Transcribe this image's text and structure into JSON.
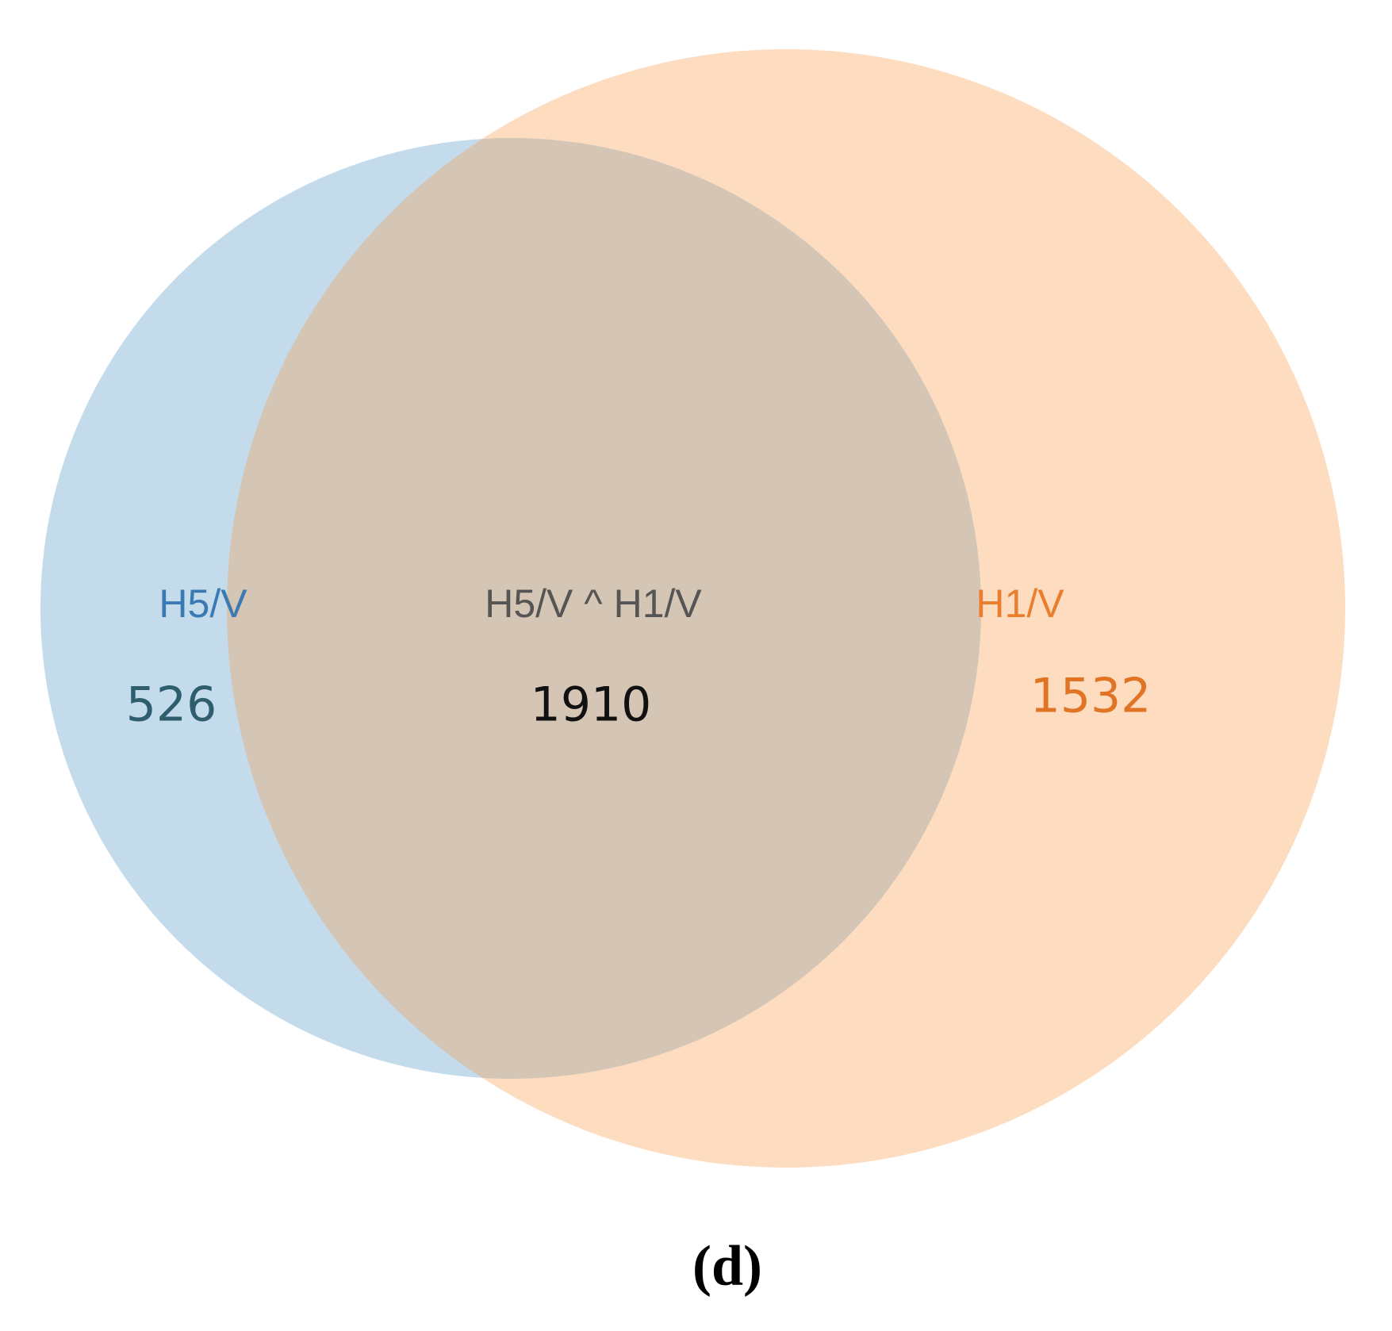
{
  "chart_data": {
    "type": "venn",
    "caption": "(d)",
    "sets": [
      {
        "name": "H5/V",
        "value": 526,
        "color": "#c3dbeb",
        "label_color": "#3b79b2",
        "value_color": "#2e5d6d"
      },
      {
        "name": "H1/V",
        "value": 1532,
        "color": "#fddcc0",
        "label_color": "#e97e2c",
        "value_color": "#e07424"
      }
    ],
    "intersection": {
      "name": "H5/V ^ H1/V",
      "value": 1910,
      "color": "#d5c5b4",
      "label_color": "#555555",
      "value_color": "#111111"
    }
  }
}
